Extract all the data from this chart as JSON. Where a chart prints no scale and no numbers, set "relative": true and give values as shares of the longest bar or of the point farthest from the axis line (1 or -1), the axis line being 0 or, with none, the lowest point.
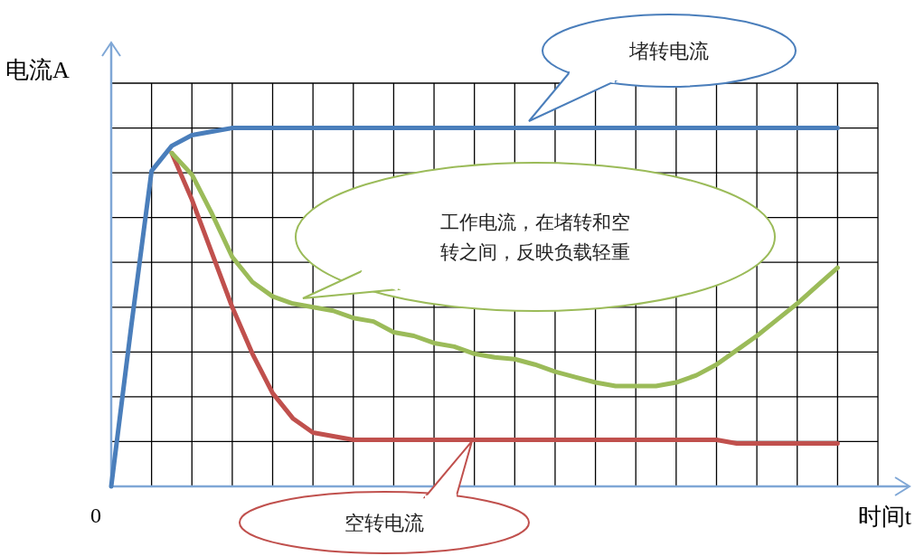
{
  "chart_data": {
    "type": "line",
    "relative": true,
    "grid": true,
    "xlabel": "时间t",
    "ylabel": "电流A",
    "categories": [
      null,
      null,
      null,
      null,
      null,
      null,
      null,
      null,
      null,
      null,
      null,
      null,
      null,
      null,
      null,
      null,
      null,
      null,
      null,
      null,
      null,
      null,
      null,
      null,
      null,
      null,
      null,
      null,
      null,
      null,
      null,
      null,
      null,
      null,
      null,
      null,
      null,
      null,
      null
    ],
    "series": [
      {
        "color": "#4a7ebb",
        "values": [
          0,
          0.45,
          0.88,
          0.95,
          0.98,
          0.99,
          1,
          1,
          1,
          1,
          1,
          1,
          1,
          1,
          1,
          1,
          1,
          1,
          1,
          1,
          1,
          1,
          1,
          1,
          1,
          1,
          1,
          1,
          1,
          1,
          1,
          1,
          1,
          1,
          1,
          1,
          1,
          null,
          null
        ]
      },
      {
        "color": "#c0504d",
        "values": [
          null,
          null,
          null,
          0.93,
          0.8,
          0.65,
          0.5,
          0.37,
          0.26,
          0.19,
          0.15,
          0.14,
          0.13,
          0.13,
          0.13,
          0.13,
          0.13,
          0.13,
          0.13,
          0.13,
          0.13,
          0.13,
          0.13,
          0.13,
          0.13,
          0.13,
          0.13,
          0.13,
          0.13,
          0.13,
          0.13,
          0.12,
          0.12,
          0.12,
          0.12,
          0.12,
          0.12,
          null,
          null
        ]
      },
      {
        "color": "#9bbb59",
        "values": [
          null,
          null,
          null,
          0.93,
          0.87,
          0.76,
          0.64,
          0.57,
          0.53,
          0.51,
          0.5,
          0.49,
          0.47,
          0.46,
          0.43,
          0.42,
          0.4,
          0.39,
          0.37,
          0.36,
          0.355,
          0.34,
          0.32,
          0.305,
          0.29,
          0.28,
          0.28,
          0.28,
          0.29,
          0.31,
          0.34,
          0.38,
          0.42,
          0.465,
          0.51,
          0.56,
          0.61,
          null,
          null
        ]
      }
    ],
    "annotations": [
      "堵转电流",
      "工作电流，在堵转和空转之间，反映负载轻重",
      "空转电流",
      "0"
    ]
  }
}
